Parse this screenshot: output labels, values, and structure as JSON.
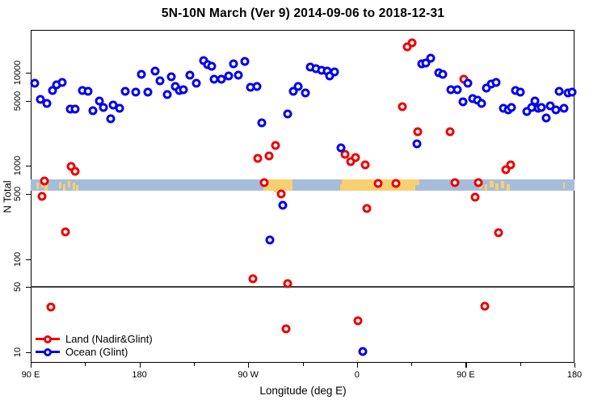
{
  "title": "5N-10N March (Ver 9)   2014-09-06 to 2018-12-31",
  "axes": {
    "x": {
      "label": "Longitude (deg E)",
      "range_deg": [
        0,
        450
      ],
      "major_ticks": [
        {
          "deg": 0,
          "label": "90 E"
        },
        {
          "deg": 90,
          "label": "180"
        },
        {
          "deg": 180,
          "label": "90 W"
        },
        {
          "deg": 270,
          "label": "0"
        },
        {
          "deg": 360,
          "label": "90 E"
        },
        {
          "deg": 450,
          "label": "180"
        }
      ],
      "minor_ticks_deg": [
        45,
        135,
        225,
        315,
        405
      ]
    },
    "y": {
      "label": "N Total",
      "scale": "log10",
      "ylim": [
        8,
        28800
      ],
      "ticks": [
        {
          "value": 10000,
          "label": "10000"
        },
        {
          "value": 5000,
          "label": "5000"
        },
        {
          "value": 1000,
          "label": "1000"
        },
        {
          "value": 500,
          "label": "500"
        },
        {
          "value": 100,
          "label": "100"
        },
        {
          "value": 50,
          "label": "50"
        },
        {
          "value": 10,
          "label": "10"
        }
      ]
    }
  },
  "legend": {
    "land_label": "Land (Nadir&Glint)",
    "ocean_label": "Ocean (Glint)"
  },
  "colors": {
    "land": "#ee0000",
    "ocean": "#0000ee",
    "band_ocean": "#a6bcdb",
    "band_land": "#f8cf72",
    "refline": "#3d3d3d",
    "frame": "#000000"
  },
  "chart_data": {
    "type": "scatter",
    "title": "5N-10N March (Ver 9)   2014-09-06 to 2018-12-31",
    "xlabel": "Longitude (deg E)",
    "ylabel": "N Total",
    "x_axis_note": "x stored as degrees along wrapped axis: 0=90E, 90=180, 180=90W, 270=0, 360=90E, 450=180",
    "yscale": "log",
    "refline_value": 50,
    "map_band": {
      "value_top": 710,
      "value_bottom": 545,
      "patches": [
        {
          "d0": 5,
          "d1": 7,
          "t": 0.3,
          "b": 0.9
        },
        {
          "d0": 8.5,
          "d1": 10.5,
          "t": 0.15,
          "b": 0.75
        },
        {
          "d0": 11.5,
          "d1": 14,
          "t": 0.35,
          "b": 1.0
        },
        {
          "d0": 23.5,
          "d1": 25.5,
          "t": 0.2,
          "b": 0.8
        },
        {
          "d0": 27,
          "d1": 29,
          "t": 0.45,
          "b": 1.0
        },
        {
          "d0": 30.5,
          "d1": 33,
          "t": 0.1,
          "b": 0.7
        },
        {
          "d0": 34.5,
          "d1": 36.5,
          "t": 0.3,
          "b": 0.95
        },
        {
          "d0": 37.5,
          "d1": 39.5,
          "t": 0.5,
          "b": 1.0
        },
        {
          "d0": 192.8,
          "d1": 195,
          "t": 0.35,
          "b": 1.0
        },
        {
          "d0": 195,
          "d1": 216.5,
          "t": 0.0,
          "b": 1.0
        },
        {
          "d0": 201,
          "d1": 203,
          "t": 1.0,
          "b": 1.2
        },
        {
          "d0": 206.8,
          "d1": 210,
          "t": 1.0,
          "b": 1.45
        },
        {
          "d0": 256,
          "d1": 257.5,
          "t": 0.4,
          "b": 1.0
        },
        {
          "d0": 257.5,
          "d1": 318.5,
          "t": 0.0,
          "b": 1.0
        },
        {
          "d0": 318.5,
          "d1": 321.5,
          "t": 0.0,
          "b": 0.5
        },
        {
          "d0": 371,
          "d1": 373.5,
          "t": 0.2,
          "b": 0.85
        },
        {
          "d0": 375.5,
          "d1": 378,
          "t": 0.4,
          "b": 1.0
        },
        {
          "d0": 380,
          "d1": 383,
          "t": 0.1,
          "b": 0.7
        },
        {
          "d0": 384.5,
          "d1": 387,
          "t": 0.35,
          "b": 0.95
        },
        {
          "d0": 389,
          "d1": 392,
          "t": 0.15,
          "b": 0.8
        },
        {
          "d0": 393.5,
          "d1": 396.5,
          "t": 0.4,
          "b": 1.0
        },
        {
          "d0": 440.5,
          "d1": 442,
          "t": 0.3,
          "b": 0.8
        }
      ]
    },
    "series": [
      {
        "name": "Land (Nadir&Glint)",
        "color_key": "land",
        "points": [
          [
            9.4,
            470
          ],
          [
            11.4,
            690
          ],
          [
            16.7,
            30.5
          ],
          [
            28.8,
            196
          ],
          [
            33.4,
            990
          ],
          [
            36.8,
            875
          ],
          [
            183.9,
            62
          ],
          [
            187.9,
            1210
          ],
          [
            193.2,
            660
          ],
          [
            197.3,
            1280
          ],
          [
            202.6,
            1660
          ],
          [
            207.3,
            500
          ],
          [
            212.6,
            54
          ],
          [
            211.3,
            17.8
          ],
          [
            260.1,
            1330
          ],
          [
            264.8,
            1110
          ],
          [
            268.8,
            1230
          ],
          [
            276.8,
            1030
          ],
          [
            270.8,
            21.7
          ],
          [
            278.2,
            350
          ],
          [
            287.5,
            650
          ],
          [
            302.2,
            650
          ],
          [
            307.6,
            4320
          ],
          [
            311.6,
            18900
          ],
          [
            315.6,
            20900
          ],
          [
            320.3,
            2330
          ],
          [
            347.0,
            2330
          ],
          [
            351.0,
            655
          ],
          [
            358.4,
            8530
          ],
          [
            367.8,
            460
          ],
          [
            370.4,
            655
          ],
          [
            375.8,
            31
          ],
          [
            387.2,
            192
          ],
          [
            393.2,
            910
          ],
          [
            397.2,
            1030
          ]
        ]
      },
      {
        "name": "Ocean (Glint)",
        "color_key": "ocean",
        "points": [
          [
            3.3,
            7700
          ],
          [
            8.0,
            5170
          ],
          [
            13.4,
            4680
          ],
          [
            18.1,
            6440
          ],
          [
            21.4,
            7410
          ],
          [
            26.1,
            7870
          ],
          [
            32.8,
            4070
          ],
          [
            36.8,
            4070
          ],
          [
            42.8,
            6440
          ],
          [
            47.5,
            6310
          ],
          [
            51.5,
            3910
          ],
          [
            56.8,
            4970
          ],
          [
            60.2,
            4240
          ],
          [
            66.2,
            3210
          ],
          [
            68.2,
            4500
          ],
          [
            73.6,
            4150
          ],
          [
            78.2,
            6310
          ],
          [
            86.9,
            6240
          ],
          [
            91.6,
            9610
          ],
          [
            97.0,
            6160
          ],
          [
            103.0,
            10400
          ],
          [
            107.0,
            8190
          ],
          [
            113.0,
            5830
          ],
          [
            116.3,
            9050
          ],
          [
            119.7,
            7130
          ],
          [
            123.0,
            6440
          ],
          [
            126.4,
            6630
          ],
          [
            131.7,
            9420
          ],
          [
            137.1,
            7710
          ],
          [
            143.1,
            13500
          ],
          [
            146.4,
            12200
          ],
          [
            149.8,
            11700
          ],
          [
            151.8,
            8530
          ],
          [
            157.8,
            8530
          ],
          [
            163.8,
            9230
          ],
          [
            167.8,
            12400
          ],
          [
            171.8,
            9420
          ],
          [
            177.2,
            13200
          ],
          [
            181.9,
            7040
          ],
          [
            187.2,
            7130
          ],
          [
            191.2,
            2900
          ],
          [
            197.9,
            160
          ],
          [
            208.6,
            378
          ],
          [
            212.6,
            3610
          ],
          [
            217.3,
            6310
          ],
          [
            221.3,
            7130
          ],
          [
            227.3,
            6070
          ],
          [
            231.4,
            11500
          ],
          [
            236.0,
            11100
          ],
          [
            240.7,
            10700
          ],
          [
            245.4,
            10400
          ],
          [
            247.4,
            9230
          ],
          [
            251.4,
            10200
          ],
          [
            256.8,
            1560
          ],
          [
            274.8,
            10.2
          ],
          [
            319.6,
            1730
          ],
          [
            323.6,
            12400
          ],
          [
            327.0,
            12700
          ],
          [
            331.0,
            14300
          ],
          [
            337.7,
            10000
          ],
          [
            341.0,
            9610
          ],
          [
            347.7,
            6630
          ],
          [
            353.0,
            6630
          ],
          [
            357.7,
            4870
          ],
          [
            361.7,
            7700
          ],
          [
            365.8,
            5280
          ],
          [
            369.8,
            5040
          ],
          [
            373.1,
            4680
          ],
          [
            377.1,
            6820
          ],
          [
            381.1,
            7530
          ],
          [
            385.2,
            7870
          ],
          [
            391.2,
            4150
          ],
          [
            395.2,
            3990
          ],
          [
            397.9,
            4240
          ],
          [
            401.2,
            6440
          ],
          [
            405.2,
            6240
          ],
          [
            410.6,
            3830
          ],
          [
            414.6,
            4240
          ],
          [
            417.3,
            4970
          ],
          [
            419.9,
            4150
          ],
          [
            422.6,
            4240
          ],
          [
            426.6,
            3270
          ],
          [
            430.0,
            4440
          ],
          [
            434.6,
            3990
          ],
          [
            437.3,
            6310
          ],
          [
            441.3,
            4150
          ],
          [
            444.7,
            6070
          ],
          [
            448.0,
            6240
          ]
        ]
      }
    ]
  }
}
